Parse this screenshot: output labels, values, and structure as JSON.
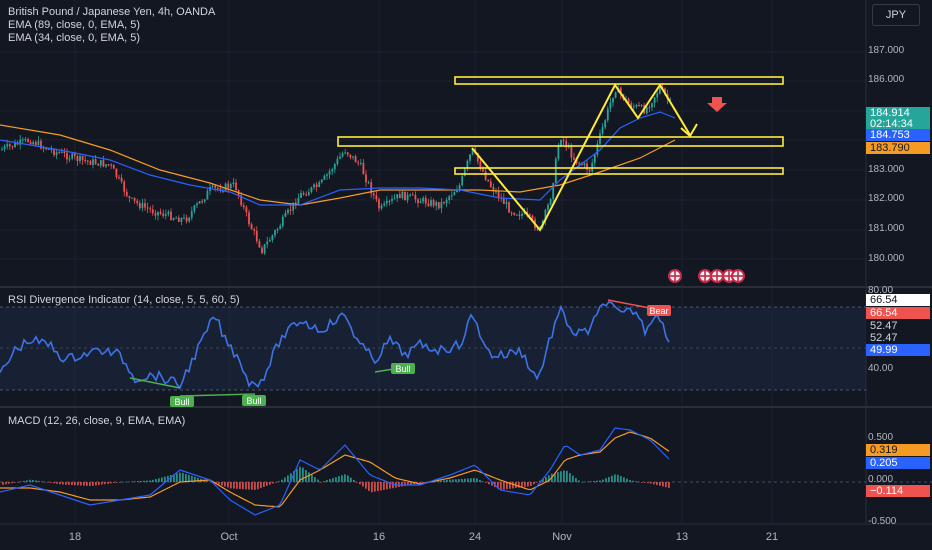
{
  "header": {
    "title": "British Pound / Japanese Yen, 4h, OANDA",
    "ema1": "EMA (89, close, 0, EMA, 5)",
    "ema2": "EMA (34, close, 0, EMA, 5)"
  },
  "currency_button": "JPY",
  "price_axis": {
    "labels": [
      "187.000",
      "186.000",
      "183.000",
      "182.000",
      "181.000",
      "180.000"
    ],
    "tags": {
      "last": "184.914",
      "countdown": "02:14:34",
      "ema34": "184.753",
      "ema89": "183.790"
    }
  },
  "rsi_panel": {
    "title": "RSI Divergence Indicator (14, close, 5, 5, 60, 5)",
    "axis_labels": [
      "80.00",
      "40.00"
    ],
    "tags": [
      "66.54",
      "66.54",
      "52.47",
      "52.47",
      "49.99"
    ],
    "bull_label": "Bull",
    "bear_label": "Bear"
  },
  "macd_panel": {
    "title": "MACD (12, 26, close, 9, EMA, EMA)",
    "axis_labels": [
      "0.500",
      "0.000",
      "-0.500"
    ],
    "tags": [
      "0.319",
      "0.205",
      "−0.114"
    ]
  },
  "time_axis": [
    "18",
    "Oct",
    "16",
    "24",
    "Nov",
    "13",
    "21"
  ],
  "colors": {
    "background": "#131722",
    "up_candle": "#26a69a",
    "down_candle": "#ef5350",
    "ema34": "#2962ff",
    "ema89": "#f59b23",
    "annotation": "#ffeb3b",
    "rsi_line": "#3c73e6"
  },
  "icons": [
    "uk-flag-event-icon",
    "uk-flag-event-icon",
    "arrow-down-icon"
  ]
}
